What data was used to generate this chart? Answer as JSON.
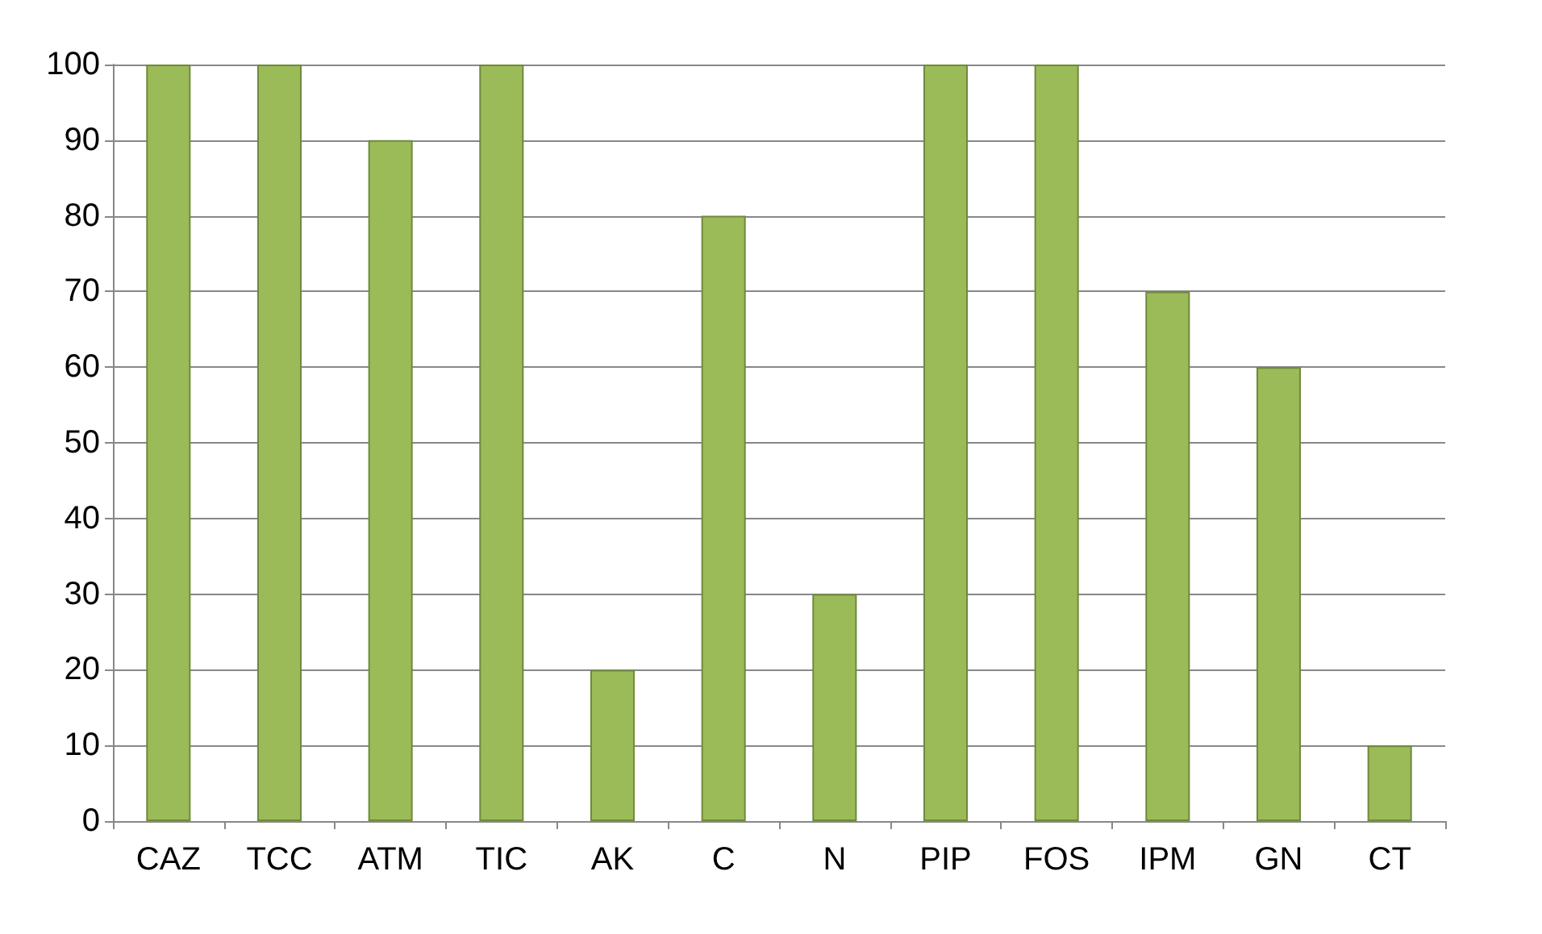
{
  "chart_data": {
    "type": "bar",
    "categories": [
      "CAZ",
      "TCC",
      "ATM",
      "TIC",
      "AK",
      "C",
      "N",
      "PIP",
      "FOS",
      "IPM",
      "GN",
      "CT"
    ],
    "values": [
      100,
      100,
      90,
      100,
      20,
      80,
      30,
      100,
      100,
      70,
      60,
      10
    ],
    "color": "#9bbb59",
    "ylim": [
      0,
      100
    ],
    "yticks": [
      0,
      10,
      20,
      30,
      40,
      50,
      60,
      70,
      80,
      90,
      100
    ],
    "grid": "y"
  }
}
